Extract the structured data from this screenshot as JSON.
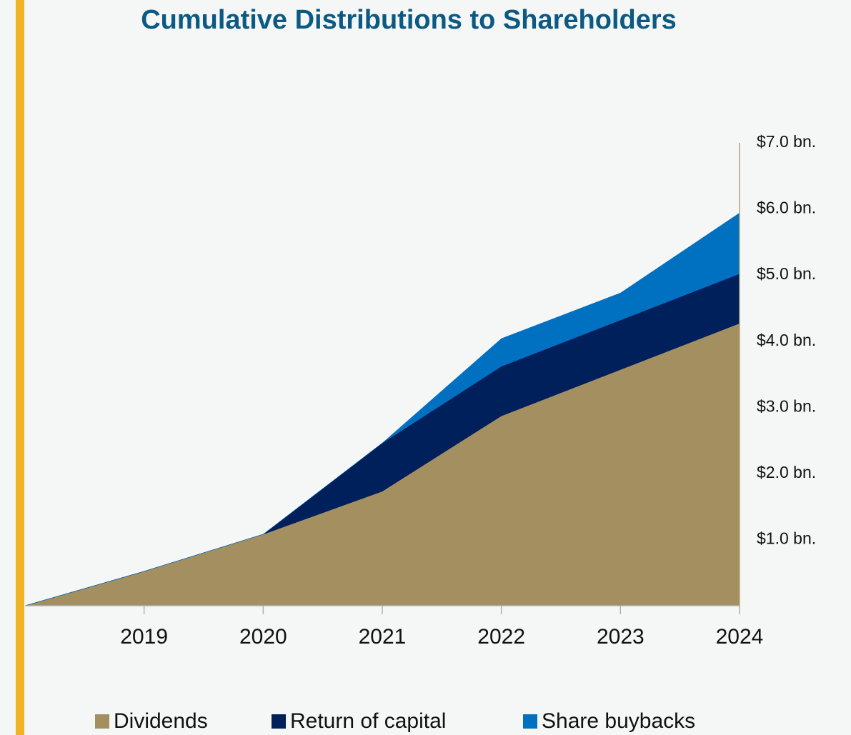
{
  "chart_data": {
    "type": "stacked_area",
    "title": "Cumulative Distributions to Shareholders",
    "categories": [
      null,
      "2019",
      "2020",
      "2021",
      "2022",
      "2023",
      "2024"
    ],
    "series": [
      {
        "name": "Dividends",
        "color": "#a38f60",
        "values": [
          0,
          0.52,
          1.08,
          1.73,
          2.87,
          3.57,
          4.27
        ]
      },
      {
        "name": "Return of capital",
        "color": "#00205c",
        "values": [
          0,
          0,
          0,
          0.73,
          0.75,
          0.75,
          0.75
        ]
      },
      {
        "name": "Share buybacks",
        "color": "#0070c0",
        "values": [
          0,
          0,
          0,
          0,
          0.42,
          0.41,
          0.92
        ]
      }
    ],
    "ylim": [
      0,
      7
    ],
    "yticks": [
      {
        "value": 1,
        "label": "$1.0 bn."
      },
      {
        "value": 2,
        "label": "$2.0 bn."
      },
      {
        "value": 3,
        "label": "$3.0 bn."
      },
      {
        "value": 4,
        "label": "$4.0 bn."
      },
      {
        "value": 5,
        "label": "$5.0 bn."
      },
      {
        "value": 6,
        "label": "$6.0 bn."
      },
      {
        "value": 7,
        "label": "$7.0 bn."
      }
    ],
    "legend": "bottom"
  }
}
